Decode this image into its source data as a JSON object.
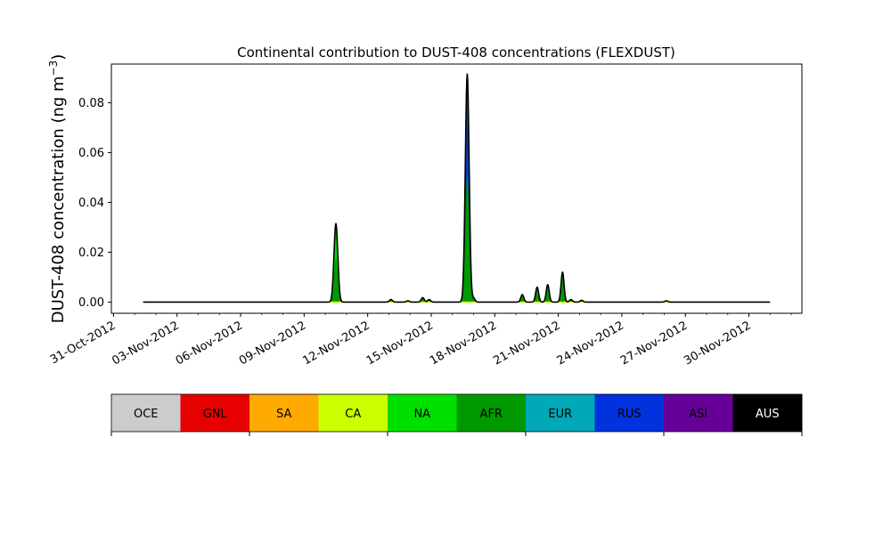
{
  "chart_data": {
    "type": "area",
    "title": "Continental contribution to DUST-408 concentrations (FLEXDUST)",
    "xlabel": "",
    "ylabel": "DUST-408 concentration (ng m",
    "ylabel_unit_exp": "−3",
    "ylabel_close": ")",
    "x_tick_labels": [
      "31-Oct-2012",
      "03-Nov-2012",
      "06-Nov-2012",
      "09-Nov-2012",
      "12-Nov-2012",
      "15-Nov-2012",
      "18-Nov-2012",
      "21-Nov-2012",
      "24-Nov-2012",
      "27-Nov-2012",
      "30-Nov-2012"
    ],
    "x_tick_days": [
      0,
      3,
      6,
      9,
      12,
      15,
      18,
      21,
      24,
      27,
      30
    ],
    "x_range_days": [
      -0.1,
      32.5
    ],
    "data_range_days": [
      1.4,
      31.0
    ],
    "y_ticks": [
      0.0,
      0.02,
      0.04,
      0.06,
      0.08
    ],
    "y_tick_labels": [
      "0.00",
      "0.02",
      "0.04",
      "0.06",
      "0.08"
    ],
    "ylim": [
      -0.0045,
      0.0955
    ],
    "peaks": [
      {
        "day": 10.5,
        "value": 0.0315,
        "dominant": "NA"
      },
      {
        "day": 13.1,
        "value": 0.001,
        "dominant": "AFR"
      },
      {
        "day": 13.9,
        "value": 0.0005,
        "dominant": "AFR"
      },
      {
        "day": 14.6,
        "value": 0.0018,
        "dominant": "AFR"
      },
      {
        "day": 14.9,
        "value": 0.001,
        "dominant": "AFR"
      },
      {
        "day": 16.7,
        "value": 0.0915,
        "dominant": "RUS"
      },
      {
        "day": 17.0,
        "value": 0.0015,
        "dominant": "AFR"
      },
      {
        "day": 19.3,
        "value": 0.003,
        "dominant": "AFR"
      },
      {
        "day": 20.0,
        "value": 0.006,
        "dominant": "AFR"
      },
      {
        "day": 20.5,
        "value": 0.007,
        "dominant": "AFR"
      },
      {
        "day": 21.2,
        "value": 0.012,
        "dominant": "AFR"
      },
      {
        "day": 21.6,
        "value": 0.001,
        "dominant": "AFR"
      },
      {
        "day": 22.1,
        "value": 0.0007,
        "dominant": "AFR"
      },
      {
        "day": 26.1,
        "value": 0.0005,
        "dominant": "AFR"
      }
    ],
    "legend": {
      "placement": "bottom",
      "entries": [
        {
          "label": "OCE",
          "color": "#cccccc",
          "text_color": "#000000"
        },
        {
          "label": "GNL",
          "color": "#e60000",
          "text_color": "#000000"
        },
        {
          "label": "SA",
          "color": "#ffaa00",
          "text_color": "#000000"
        },
        {
          "label": "CA",
          "color": "#ccff00",
          "text_color": "#000000"
        },
        {
          "label": "NA",
          "color": "#00e000",
          "text_color": "#000000"
        },
        {
          "label": "AFR",
          "color": "#009900",
          "text_color": "#000000"
        },
        {
          "label": "EUR",
          "color": "#00a8b8",
          "text_color": "#000000"
        },
        {
          "label": "RUS",
          "color": "#0033dd",
          "text_color": "#000000"
        },
        {
          "label": "ASI",
          "color": "#660099",
          "text_color": "#000000"
        },
        {
          "label": "AUS",
          "color": "#000000",
          "text_color": "#ffffff"
        }
      ]
    },
    "grid": false
  }
}
